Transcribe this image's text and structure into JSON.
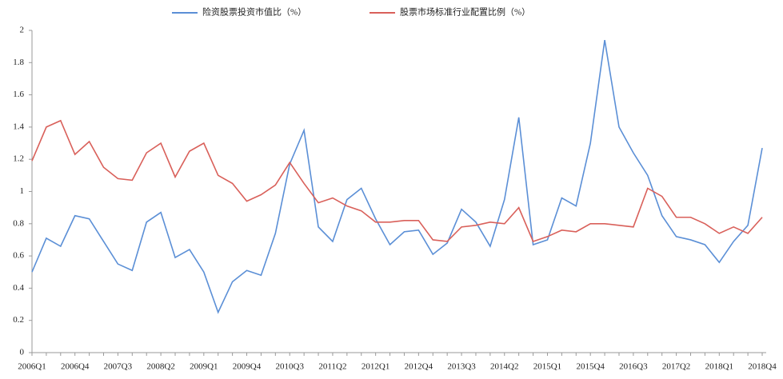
{
  "chart_data": {
    "type": "line",
    "categories": [
      "2006Q1",
      null,
      null,
      "2006Q4",
      null,
      null,
      "2007Q3",
      null,
      null,
      "2008Q2",
      null,
      null,
      "2009Q1",
      null,
      null,
      "2009Q4",
      null,
      null,
      "2010Q3",
      null,
      null,
      "2011Q2",
      null,
      null,
      "2012Q1",
      null,
      null,
      "2012Q4",
      null,
      null,
      "2013Q3",
      null,
      null,
      "2014Q2",
      null,
      null,
      "2015Q1",
      null,
      null,
      "2015Q4",
      null,
      null,
      "2016Q3",
      null,
      null,
      "2017Q2",
      null,
      null,
      "2018Q1",
      null,
      null,
      "2018Q4"
    ],
    "series": [
      {
        "name": "险资股票投资市值比（%）",
        "color": "#5b8fd6",
        "values": [
          0.5,
          0.71,
          0.66,
          0.85,
          0.83,
          0.69,
          0.55,
          0.51,
          0.81,
          0.87,
          0.59,
          0.64,
          0.5,
          0.25,
          0.44,
          0.51,
          0.48,
          0.74,
          1.17,
          1.38,
          0.78,
          0.69,
          0.95,
          1.02,
          0.83,
          0.67,
          0.75,
          0.76,
          0.61,
          0.68,
          0.89,
          0.81,
          0.66,
          0.95,
          1.46,
          0.67,
          0.7,
          0.96,
          0.91,
          1.3,
          1.94,
          1.4,
          1.24,
          1.1,
          0.85,
          0.72,
          0.7,
          0.67,
          0.56,
          0.69,
          0.79,
          1.27
        ]
      },
      {
        "name": "股票市场标准行业配置比例（%）",
        "color": "#d9605a",
        "values": [
          1.19,
          1.4,
          1.44,
          1.23,
          1.31,
          1.15,
          1.08,
          1.07,
          1.24,
          1.3,
          1.09,
          1.25,
          1.3,
          1.1,
          1.05,
          0.94,
          0.98,
          1.04,
          1.18,
          1.05,
          0.93,
          0.96,
          0.91,
          0.88,
          0.81,
          0.81,
          0.82,
          0.82,
          0.7,
          0.69,
          0.78,
          0.79,
          0.81,
          0.8,
          0.9,
          0.69,
          0.72,
          0.76,
          0.75,
          0.8,
          0.8,
          0.79,
          0.78,
          1.02,
          0.97,
          0.84,
          0.84,
          0.8,
          0.74,
          0.78,
          0.74,
          0.84
        ]
      }
    ],
    "ylim": [
      0,
      2
    ],
    "yticks": [
      0,
      0.2,
      0.4,
      0.6,
      0.8,
      1,
      1.2,
      1.4,
      1.6,
      1.8,
      2
    ],
    "grid": false,
    "legend": "top"
  }
}
